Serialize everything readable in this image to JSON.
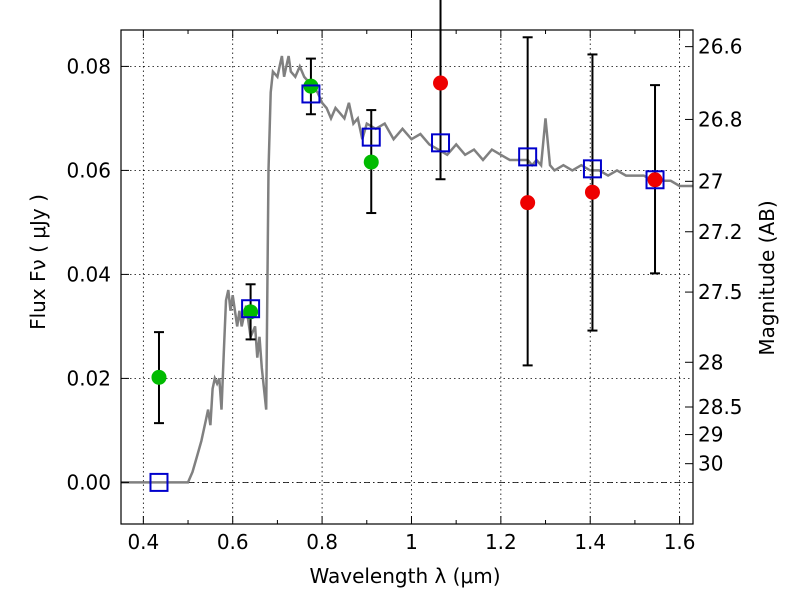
{
  "chart_data": {
    "type": "scatter",
    "xlabel": "Wavelength  λ (μm)",
    "ylabel": "Flux  Fν ( μJy )",
    "y2label": "Magnitude (AB)",
    "xlim": [
      0.35,
      1.63
    ],
    "ylim": [
      -0.008,
      0.087
    ],
    "x_ticks": [
      0.4,
      0.6,
      0.8,
      1.0,
      1.2,
      1.4,
      1.6
    ],
    "x_tick_labels": [
      "0.4",
      "0.6",
      "0.8",
      "1",
      "1.2",
      "1.4",
      "1.6"
    ],
    "y_ticks": [
      0.0,
      0.02,
      0.04,
      0.06,
      0.08
    ],
    "y_tick_labels": [
      "0.00",
      "0.02",
      "0.04",
      "0.06",
      "0.08"
    ],
    "magnitude_ticks": [
      {
        "label": "26.6",
        "flux": 0.0838
      },
      {
        "label": "26.8",
        "flux": 0.0698
      },
      {
        "label": "27",
        "flux": 0.0579
      },
      {
        "label": "27.2",
        "flux": 0.0482
      },
      {
        "label": "27.5",
        "flux": 0.0366
      },
      {
        "label": "28",
        "flux": 0.0231
      },
      {
        "label": "28.5",
        "flux": 0.0145
      },
      {
        "label": "29",
        "flux": 0.0092
      },
      {
        "label": "30",
        "flux": 0.0036
      }
    ],
    "grid": true,
    "colors": {
      "model": "#808080",
      "green_points": "#00bb00",
      "red_points": "#ee0000",
      "model_squares": "#0000cc",
      "errorbars": "#000000",
      "zero_line": "#000000"
    },
    "series": [
      {
        "type": "line",
        "style": "model-spectrum",
        "x": [
          0.35,
          0.4,
          0.45,
          0.5,
          0.51,
          0.52,
          0.53,
          0.54,
          0.545,
          0.55,
          0.555,
          0.56,
          0.565,
          0.57,
          0.575,
          0.58,
          0.585,
          0.59,
          0.595,
          0.6,
          0.61,
          0.615,
          0.62,
          0.63,
          0.64,
          0.65,
          0.655,
          0.66,
          0.665,
          0.67,
          0.675,
          0.68,
          0.685,
          0.69,
          0.7,
          0.705,
          0.71,
          0.715,
          0.72,
          0.725,
          0.73,
          0.74,
          0.75,
          0.76,
          0.77,
          0.78,
          0.79,
          0.8,
          0.81,
          0.82,
          0.83,
          0.84,
          0.85,
          0.86,
          0.87,
          0.88,
          0.89,
          0.9,
          0.92,
          0.94,
          0.96,
          0.98,
          1.0,
          1.02,
          1.04,
          1.06,
          1.08,
          1.1,
          1.12,
          1.14,
          1.16,
          1.18,
          1.2,
          1.22,
          1.24,
          1.26,
          1.27,
          1.28,
          1.29,
          1.3,
          1.31,
          1.32,
          1.34,
          1.36,
          1.38,
          1.4,
          1.42,
          1.44,
          1.46,
          1.48,
          1.5,
          1.52,
          1.54,
          1.56,
          1.58,
          1.6,
          1.63
        ],
        "y": [
          0.0,
          0.0,
          0.0,
          0.0,
          0.002,
          0.005,
          0.008,
          0.012,
          0.014,
          0.011,
          0.018,
          0.02,
          0.019,
          0.02,
          0.014,
          0.025,
          0.035,
          0.037,
          0.033,
          0.036,
          0.03,
          0.033,
          0.03,
          0.034,
          0.028,
          0.03,
          0.024,
          0.028,
          0.022,
          0.018,
          0.014,
          0.06,
          0.075,
          0.079,
          0.078,
          0.08,
          0.082,
          0.078,
          0.08,
          0.082,
          0.079,
          0.078,
          0.08,
          0.078,
          0.077,
          0.076,
          0.075,
          0.073,
          0.072,
          0.07,
          0.072,
          0.071,
          0.07,
          0.073,
          0.069,
          0.07,
          0.066,
          0.069,
          0.068,
          0.069,
          0.066,
          0.068,
          0.066,
          0.067,
          0.065,
          0.064,
          0.063,
          0.065,
          0.063,
          0.064,
          0.062,
          0.064,
          0.063,
          0.062,
          0.062,
          0.062,
          0.061,
          0.062,
          0.061,
          0.07,
          0.061,
          0.06,
          0.061,
          0.06,
          0.061,
          0.06,
          0.06,
          0.059,
          0.06,
          0.059,
          0.059,
          0.059,
          0.058,
          0.058,
          0.058,
          0.057,
          0.057
        ]
      },
      {
        "type": "scatter",
        "style": "green-points-with-errorbars",
        "x": [
          0.435,
          0.64,
          0.775,
          0.91
        ],
        "y": [
          0.0202,
          0.0328,
          0.0762,
          0.0616
        ],
        "err_low": [
          0.0088,
          0.0053,
          0.0054,
          0.0098
        ],
        "err_high": [
          0.0087,
          0.0053,
          0.0053,
          0.01
        ]
      },
      {
        "type": "scatter",
        "style": "red-points-with-errorbars",
        "x": [
          1.065,
          1.26,
          1.405,
          1.545
        ],
        "y": [
          0.0768,
          0.0538,
          0.0558,
          0.0582
        ],
        "err_low": [
          0.0185,
          0.0313,
          0.0266,
          0.018
        ],
        "err_high": [
          0.02,
          0.0318,
          0.0265,
          0.0182
        ]
      },
      {
        "type": "scatter",
        "style": "open-squares",
        "x": [
          0.435,
          0.64,
          0.775,
          0.91,
          1.065,
          1.26,
          1.405,
          1.545
        ],
        "y": [
          0.0,
          0.0334,
          0.0747,
          0.0664,
          0.0653,
          0.0626,
          0.0603,
          0.0582
        ]
      }
    ]
  }
}
